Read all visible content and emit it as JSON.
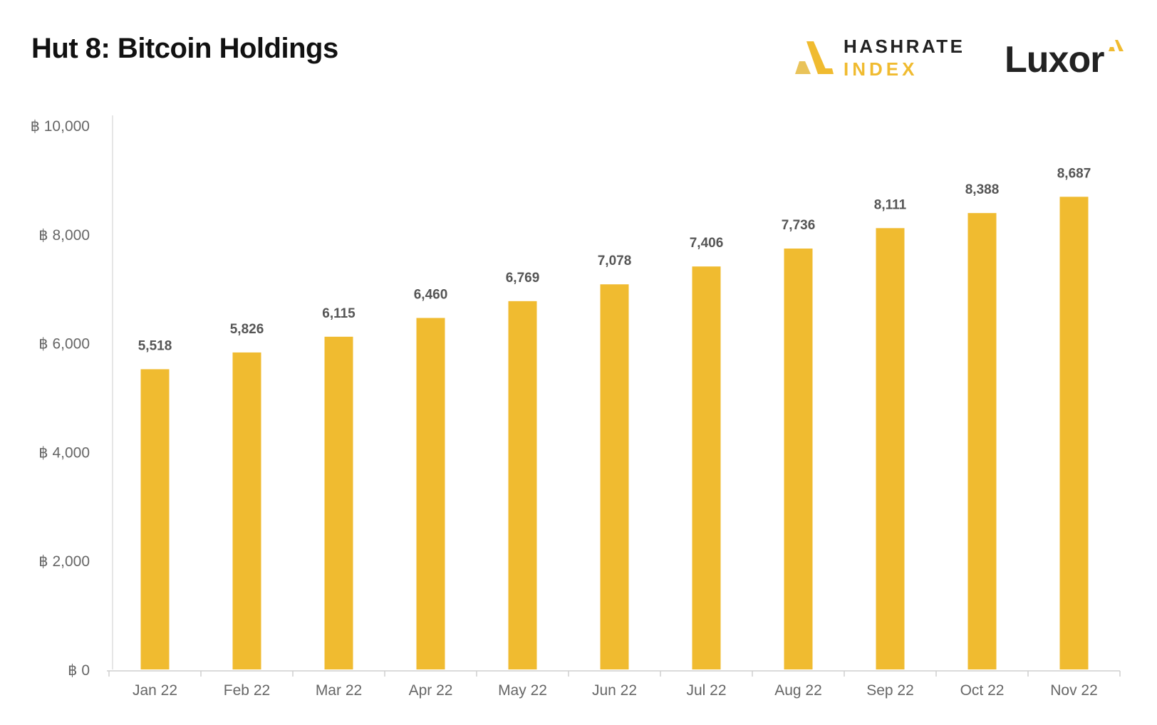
{
  "title": "Hut 8: Bitcoin Holdings",
  "brand": {
    "line1": "HASHRATE",
    "line2": "INDEX",
    "icon": "hashrate-index-logo-icon"
  },
  "partner": {
    "name": "Luxor",
    "icon": "luxor-logo-icon"
  },
  "colors": {
    "bar": "#f0bb30",
    "text": "#111111",
    "axis": "#666666",
    "label": "#555555",
    "brand_yellow": "#f0bb30"
  },
  "chart_data": {
    "type": "bar",
    "title": "Hut 8: Bitcoin Holdings",
    "categories": [
      "Jan 22",
      "Feb 22",
      "Mar 22",
      "Apr 22",
      "May 22",
      "Jun 22",
      "Jul 22",
      "Aug 22",
      "Sep 22",
      "Oct 22",
      "Nov 22"
    ],
    "values": [
      5518,
      5826,
      6115,
      6460,
      6769,
      7078,
      7406,
      7736,
      8111,
      8388,
      8687
    ],
    "value_labels": [
      "5,518",
      "5,826",
      "6,115",
      "6,460",
      "6,769",
      "7,078",
      "7,406",
      "7,736",
      "8,111",
      "8,388",
      "8,687"
    ],
    "yticks": [
      0,
      2000,
      4000,
      6000,
      8000,
      10000
    ],
    "ytick_labels": [
      "฿ 0",
      "฿ 2,000",
      "฿ 4,000",
      "฿ 6,000",
      "฿ 8,000",
      "฿ 10,000"
    ],
    "ylim": [
      0,
      10000
    ],
    "xlabel": "",
    "ylabel": "",
    "grid": false,
    "legend": "none"
  }
}
